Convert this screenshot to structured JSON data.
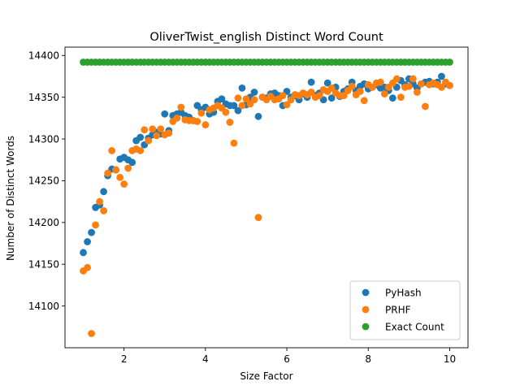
{
  "chart_data": {
    "type": "scatter",
    "title": "OliverTwist_english Distinct Word Count",
    "xlabel": "Size Factor",
    "ylabel": "Number of Distinct Words",
    "xlim": [
      0.55,
      10.45
    ],
    "ylim": [
      14050,
      14410
    ],
    "xticks": [
      2,
      4,
      6,
      8,
      10
    ],
    "yticks": [
      14100,
      14150,
      14200,
      14250,
      14300,
      14350,
      14400
    ],
    "grid": false,
    "legend_position": "lower-right",
    "series": [
      {
        "name": "PyHash",
        "color": "#1f77b4",
        "points": [
          [
            1.0,
            14164
          ],
          [
            1.1,
            14177
          ],
          [
            1.2,
            14188
          ],
          [
            1.3,
            14218
          ],
          [
            1.4,
            14221
          ],
          [
            1.5,
            14237
          ],
          [
            1.6,
            14256
          ],
          [
            1.7,
            14264
          ],
          [
            1.8,
            14263
          ],
          [
            1.9,
            14276
          ],
          [
            2.0,
            14278
          ],
          [
            2.1,
            14275
          ],
          [
            2.2,
            14272
          ],
          [
            2.3,
            14298
          ],
          [
            2.4,
            14302
          ],
          [
            2.5,
            14293
          ],
          [
            2.6,
            14301
          ],
          [
            2.7,
            14305
          ],
          [
            2.8,
            14308
          ],
          [
            2.9,
            14306
          ],
          [
            3.0,
            14330
          ],
          [
            3.1,
            14310
          ],
          [
            3.2,
            14328
          ],
          [
            3.3,
            14330
          ],
          [
            3.4,
            14332
          ],
          [
            3.5,
            14328
          ],
          [
            3.6,
            14326
          ],
          [
            3.7,
            14322
          ],
          [
            3.8,
            14340
          ],
          [
            3.9,
            14335
          ],
          [
            4.0,
            14338
          ],
          [
            4.1,
            14330
          ],
          [
            4.2,
            14332
          ],
          [
            4.3,
            14345
          ],
          [
            4.4,
            14348
          ],
          [
            4.5,
            14342
          ],
          [
            4.6,
            14340
          ],
          [
            4.7,
            14340
          ],
          [
            4.8,
            14334
          ],
          [
            4.9,
            14361
          ],
          [
            5.0,
            14341
          ],
          [
            5.1,
            14350
          ],
          [
            5.2,
            14356
          ],
          [
            5.3,
            14327
          ],
          [
            5.4,
            14350
          ],
          [
            5.5,
            14349
          ],
          [
            5.6,
            14354
          ],
          [
            5.7,
            14355
          ],
          [
            5.8,
            14352
          ],
          [
            5.9,
            14340
          ],
          [
            6.0,
            14357
          ],
          [
            6.1,
            14350
          ],
          [
            6.2,
            14352
          ],
          [
            6.3,
            14347
          ],
          [
            6.4,
            14354
          ],
          [
            6.5,
            14350
          ],
          [
            6.6,
            14368
          ],
          [
            6.7,
            14352
          ],
          [
            6.8,
            14355
          ],
          [
            6.9,
            14347
          ],
          [
            7.0,
            14367
          ],
          [
            7.1,
            14349
          ],
          [
            7.2,
            14362
          ],
          [
            7.3,
            14351
          ],
          [
            7.4,
            14357
          ],
          [
            7.5,
            14360
          ],
          [
            7.6,
            14368
          ],
          [
            7.7,
            14358
          ],
          [
            7.8,
            14363
          ],
          [
            7.9,
            14366
          ],
          [
            8.0,
            14360
          ],
          [
            8.1,
            14362
          ],
          [
            8.2,
            14365
          ],
          [
            8.3,
            14361
          ],
          [
            8.4,
            14362
          ],
          [
            8.5,
            14358
          ],
          [
            8.6,
            14349
          ],
          [
            8.7,
            14362
          ],
          [
            8.8,
            14370
          ],
          [
            8.9,
            14365
          ],
          [
            9.0,
            14372
          ],
          [
            9.1,
            14366
          ],
          [
            9.2,
            14361
          ],
          [
            9.3,
            14366
          ],
          [
            9.4,
            14368
          ],
          [
            9.5,
            14369
          ],
          [
            9.6,
            14366
          ],
          [
            9.7,
            14368
          ],
          [
            9.8,
            14375
          ],
          [
            9.9,
            14366
          ],
          [
            10.0,
            14364
          ]
        ]
      },
      {
        "name": "PRHF",
        "color": "#ff7f0e",
        "points": [
          [
            1.0,
            14142
          ],
          [
            1.1,
            14146
          ],
          [
            1.2,
            14067
          ],
          [
            1.3,
            14197
          ],
          [
            1.4,
            14225
          ],
          [
            1.5,
            14214
          ],
          [
            1.6,
            14259
          ],
          [
            1.7,
            14286
          ],
          [
            1.8,
            14263
          ],
          [
            1.9,
            14254
          ],
          [
            2.0,
            14246
          ],
          [
            2.1,
            14265
          ],
          [
            2.2,
            14286
          ],
          [
            2.3,
            14288
          ],
          [
            2.4,
            14286
          ],
          [
            2.5,
            14311
          ],
          [
            2.6,
            14298
          ],
          [
            2.7,
            14312
          ],
          [
            2.8,
            14304
          ],
          [
            2.9,
            14312
          ],
          [
            3.0,
            14305
          ],
          [
            3.1,
            14307
          ],
          [
            3.2,
            14321
          ],
          [
            3.3,
            14325
          ],
          [
            3.4,
            14338
          ],
          [
            3.5,
            14323
          ],
          [
            3.6,
            14322
          ],
          [
            3.7,
            14322
          ],
          [
            3.8,
            14321
          ],
          [
            3.9,
            14331
          ],
          [
            4.0,
            14317
          ],
          [
            4.1,
            14335
          ],
          [
            4.2,
            14337
          ],
          [
            4.3,
            14340
          ],
          [
            4.4,
            14337
          ],
          [
            4.5,
            14332
          ],
          [
            4.6,
            14320
          ],
          [
            4.7,
            14295
          ],
          [
            4.8,
            14349
          ],
          [
            4.9,
            14340
          ],
          [
            5.0,
            14348
          ],
          [
            5.1,
            14342
          ],
          [
            5.2,
            14347
          ],
          [
            5.3,
            14206
          ],
          [
            5.4,
            14350
          ],
          [
            5.5,
            14347
          ],
          [
            5.6,
            14351
          ],
          [
            5.7,
            14347
          ],
          [
            5.8,
            14348
          ],
          [
            5.9,
            14352
          ],
          [
            6.0,
            14341
          ],
          [
            6.1,
            14347
          ],
          [
            6.2,
            14353
          ],
          [
            6.3,
            14352
          ],
          [
            6.4,
            14355
          ],
          [
            6.5,
            14353
          ],
          [
            6.6,
            14356
          ],
          [
            6.7,
            14350
          ],
          [
            6.8,
            14352
          ],
          [
            6.9,
            14359
          ],
          [
            7.0,
            14357
          ],
          [
            7.1,
            14361
          ],
          [
            7.2,
            14355
          ],
          [
            7.3,
            14352
          ],
          [
            7.4,
            14352
          ],
          [
            7.5,
            14358
          ],
          [
            7.6,
            14363
          ],
          [
            7.7,
            14353
          ],
          [
            7.8,
            14357
          ],
          [
            7.9,
            14346
          ],
          [
            8.0,
            14365
          ],
          [
            8.1,
            14362
          ],
          [
            8.2,
            14367
          ],
          [
            8.3,
            14368
          ],
          [
            8.4,
            14354
          ],
          [
            8.5,
            14362
          ],
          [
            8.6,
            14367
          ],
          [
            8.7,
            14372
          ],
          [
            8.8,
            14350
          ],
          [
            8.9,
            14362
          ],
          [
            9.0,
            14363
          ],
          [
            9.1,
            14372
          ],
          [
            9.2,
            14356
          ],
          [
            9.3,
            14366
          ],
          [
            9.4,
            14339
          ],
          [
            9.5,
            14365
          ],
          [
            9.6,
            14367
          ],
          [
            9.7,
            14365
          ],
          [
            9.8,
            14362
          ],
          [
            9.9,
            14368
          ],
          [
            10.0,
            14364
          ]
        ]
      },
      {
        "name": "Exact Count",
        "color": "#2ca02c",
        "constant": 14392,
        "x_start": 1.0,
        "x_end": 10.0,
        "x_step": 0.1
      }
    ]
  }
}
